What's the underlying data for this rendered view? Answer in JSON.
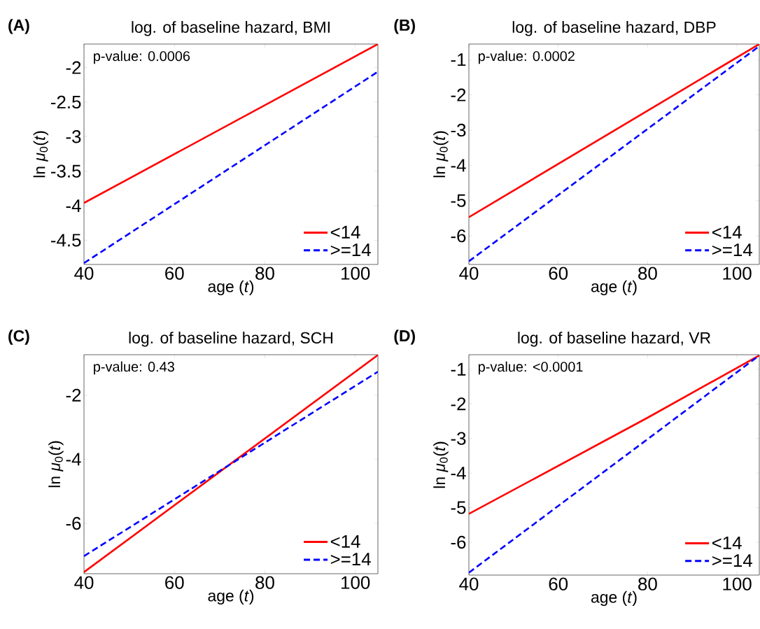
{
  "chart_data": [
    {
      "type": "line",
      "title": "log. of baseline hazard, BMI",
      "xlabel": "age (*t*)",
      "ylabel": "ln *μ*$_{0}$(*t*)",
      "annotations": [
        "(A)",
        "p-value: 0.0006"
      ],
      "x": [
        40,
        105
      ],
      "xlim": [
        40,
        105
      ],
      "ylim": [
        -4.85,
        -1.66
      ],
      "xticks": [
        40,
        60,
        80,
        100
      ],
      "yticks": [
        -4.5,
        -4,
        -3.5,
        -3,
        -2.5,
        -2
      ],
      "legend": "bottom right",
      "grid": false,
      "series": [
        {
          "name": "<14",
          "color": "#ff0000",
          "line_style": "solid",
          "values": [
            -3.96,
            -1.66
          ]
        },
        {
          "name": ">=14",
          "color": "#0000ff",
          "line_style": "dashed",
          "values": [
            -4.83,
            -2.06
          ]
        }
      ]
    },
    {
      "type": "line",
      "title": "log. of baseline hazard, DBP",
      "xlabel": "age (*t*)",
      "ylabel": "ln *μ*$_{0}$(*t*)",
      "annotations": [
        "(B)",
        "p-value: 0.0002"
      ],
      "x": [
        40,
        105
      ],
      "xlim": [
        40,
        105
      ],
      "ylim": [
        -6.81,
        -0.56
      ],
      "xticks": [
        40,
        60,
        80,
        100
      ],
      "yticks": [
        -6,
        -5,
        -4,
        -3,
        -2,
        -1
      ],
      "legend": "bottom right",
      "grid": false,
      "series": [
        {
          "name": "<14",
          "color": "#ff0000",
          "line_style": "solid",
          "values": [
            -5.47,
            -0.56
          ]
        },
        {
          "name": ">=14",
          "color": "#0000ff",
          "line_style": "dashed",
          "values": [
            -6.72,
            -0.62
          ]
        }
      ]
    },
    {
      "type": "line",
      "title": "log. of baseline hazard, SCH",
      "xlabel": "age (*t*)",
      "ylabel": "ln *μ*$_{0}$(*t*)",
      "annotations": [
        "(C)",
        "p-value: 0.43"
      ],
      "x": [
        40,
        105
      ],
      "xlim": [
        40,
        105
      ],
      "ylim": [
        -7.57,
        -0.74
      ],
      "xticks": [
        40,
        60,
        80,
        100
      ],
      "yticks": [
        -6,
        -4,
        -2
      ],
      "legend": "bottom right",
      "grid": false,
      "series": [
        {
          "name": "<14",
          "color": "#ff0000",
          "line_style": "solid",
          "values": [
            -7.52,
            -0.75
          ]
        },
        {
          "name": ">=14",
          "color": "#0000ff",
          "line_style": "dashed",
          "values": [
            -7.02,
            -1.27
          ]
        }
      ]
    },
    {
      "type": "line",
      "title": "log. of baseline hazard, VR",
      "xlabel": "age (*t*)",
      "ylabel": "ln *μ*$_{0}$(*t*)",
      "annotations": [
        "(D)",
        "p-value: <0.0001"
      ],
      "x": [
        40,
        80,
        105
      ],
      "xlim": [
        40,
        105
      ],
      "ylim": [
        -6.95,
        -0.58
      ],
      "xticks": [
        40,
        60,
        80,
        100
      ],
      "yticks": [
        -6,
        -5,
        -4,
        -3,
        -2,
        -1
      ],
      "legend": "bottom right",
      "grid": false,
      "series": [
        {
          "name": "<14",
          "color": "#ff0000",
          "line_style": "solid",
          "values": [
            -5.18,
            -2.4,
            -0.6
          ]
        },
        {
          "name": ">=14",
          "color": "#0000ff",
          "line_style": "dashed",
          "values": [
            -6.88,
            -3.02,
            -0.6
          ]
        }
      ]
    }
  ]
}
